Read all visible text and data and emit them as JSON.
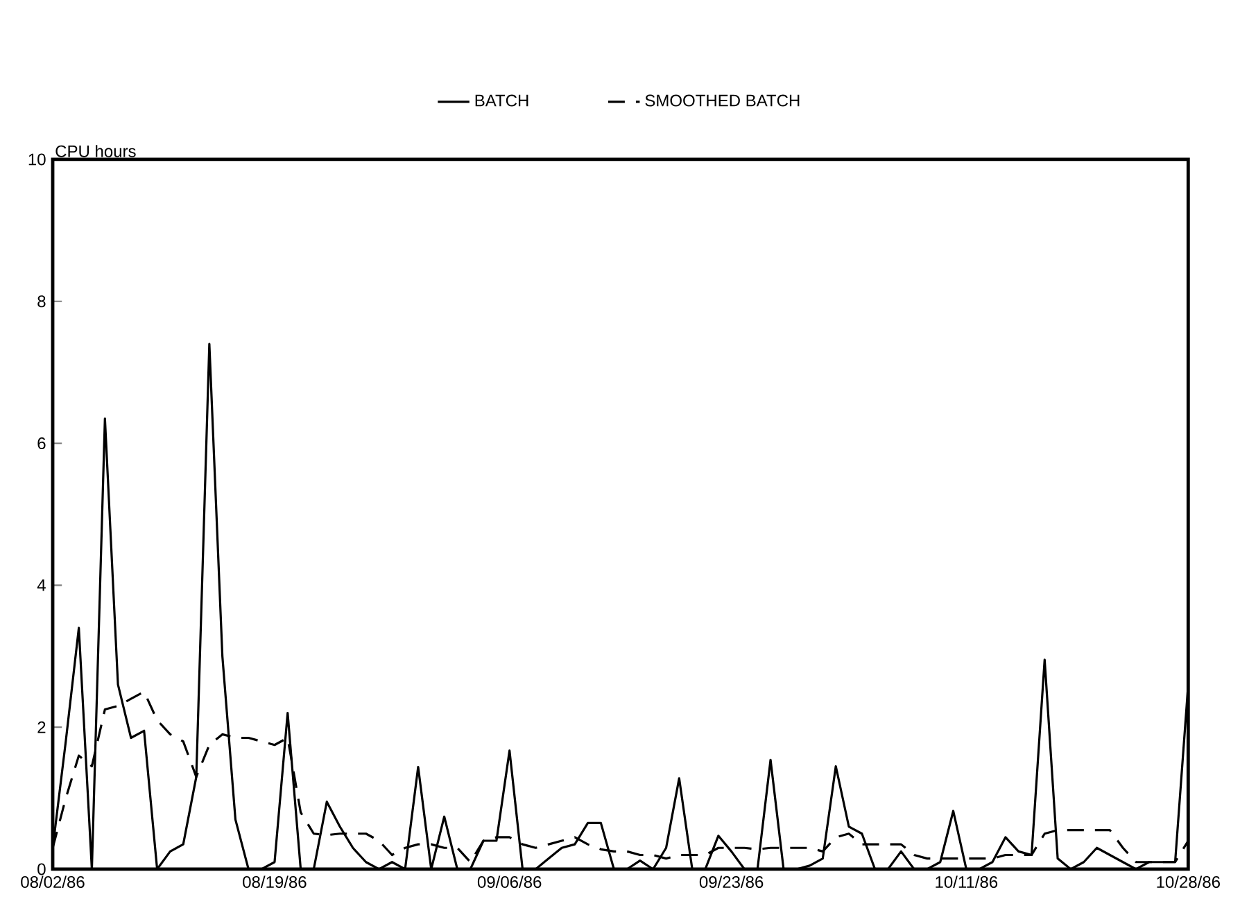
{
  "chart_data": {
    "type": "line",
    "ylabel": "CPU hours",
    "x": [
      "1986-08-02",
      "1986-08-03",
      "1986-08-04",
      "1986-08-05",
      "1986-08-06",
      "1986-08-07",
      "1986-08-08",
      "1986-08-09",
      "1986-08-10",
      "1986-08-11",
      "1986-08-12",
      "1986-08-13",
      "1986-08-14",
      "1986-08-15",
      "1986-08-16",
      "1986-08-17",
      "1986-08-18",
      "1986-08-19",
      "1986-08-20",
      "1986-08-21",
      "1986-08-22",
      "1986-08-23",
      "1986-08-24",
      "1986-08-25",
      "1986-08-26",
      "1986-08-27",
      "1986-08-28",
      "1986-08-29",
      "1986-08-30",
      "1986-08-31",
      "1986-09-01",
      "1986-09-02",
      "1986-09-03",
      "1986-09-04",
      "1986-09-05",
      "1986-09-06",
      "1986-09-07",
      "1986-09-08",
      "1986-09-09",
      "1986-09-10",
      "1986-09-11",
      "1986-09-12",
      "1986-09-13",
      "1986-09-14",
      "1986-09-15",
      "1986-09-16",
      "1986-09-17",
      "1986-09-18",
      "1986-09-19",
      "1986-09-20",
      "1986-09-21",
      "1986-09-22",
      "1986-09-23",
      "1986-09-24",
      "1986-09-25",
      "1986-09-26",
      "1986-09-27",
      "1986-09-28",
      "1986-09-29",
      "1986-09-30",
      "1986-10-01",
      "1986-10-02",
      "1986-10-03",
      "1986-10-04",
      "1986-10-05",
      "1986-10-06",
      "1986-10-07",
      "1986-10-08",
      "1986-10-09",
      "1986-10-10",
      "1986-10-11",
      "1986-10-12",
      "1986-10-13",
      "1986-10-14",
      "1986-10-15",
      "1986-10-16",
      "1986-10-17",
      "1986-10-18",
      "1986-10-19",
      "1986-10-20",
      "1986-10-21",
      "1986-10-22",
      "1986-10-23",
      "1986-10-24",
      "1986-10-25",
      "1986-10-26",
      "1986-10-27",
      "1986-10-28"
    ],
    "series": [
      {
        "name": "BATCH",
        "color": "#000000",
        "line_style": "solid",
        "values": [
          0.3,
          1.8,
          3.4,
          0,
          6.35,
          2.6,
          1.85,
          1.95,
          0,
          0.25,
          0.35,
          1.3,
          7.4,
          3.0,
          0.7,
          0,
          0,
          0.1,
          2.2,
          0,
          0,
          0.95,
          0.6,
          0.3,
          0.1,
          0,
          0.1,
          0,
          1.44,
          0,
          0.74,
          0,
          0,
          0.4,
          0.4,
          1.67,
          0,
          0,
          0.15,
          0.3,
          0.35,
          0.65,
          0.65,
          0,
          0,
          0.12,
          0,
          0.3,
          1.28,
          0,
          0,
          0.47,
          0.25,
          0,
          0,
          1.54,
          0,
          0,
          0.05,
          0.15,
          1.45,
          0.6,
          0.5,
          0,
          0,
          0.25,
          0,
          0,
          0.1,
          0.82,
          0,
          0,
          0.1,
          0.45,
          0.25,
          0.2,
          2.95,
          0.15,
          0,
          0.1,
          0.3,
          0.2,
          0.1,
          0,
          0.1,
          0.1,
          0.1,
          2.6
        ]
      },
      {
        "name": "SMOOTHED BATCH",
        "color": "#000000",
        "line_style": "dashed",
        "values": [
          0.3,
          1.0,
          1.6,
          1.45,
          2.25,
          2.3,
          2.4,
          2.5,
          2.1,
          1.9,
          1.8,
          1.3,
          1.75,
          1.9,
          1.85,
          1.85,
          1.8,
          1.75,
          1.85,
          0.8,
          0.5,
          0.48,
          0.5,
          0.5,
          0.5,
          0.4,
          0.2,
          0.3,
          0.35,
          0.35,
          0.3,
          0.3,
          0.1,
          0.4,
          0.45,
          0.45,
          0.35,
          0.3,
          0.35,
          0.4,
          0.45,
          0.35,
          0.28,
          0.25,
          0.25,
          0.2,
          0.2,
          0.15,
          0.2,
          0.2,
          0.2,
          0.3,
          0.3,
          0.3,
          0.28,
          0.3,
          0.3,
          0.3,
          0.3,
          0.25,
          0.45,
          0.5,
          0.35,
          0.35,
          0.35,
          0.35,
          0.2,
          0.15,
          0.15,
          0.15,
          0.15,
          0.15,
          0.15,
          0.2,
          0.2,
          0.2,
          0.5,
          0.55,
          0.55,
          0.55,
          0.55,
          0.55,
          0.3,
          0.1,
          0.1,
          0.1,
          0.1,
          0.4
        ]
      }
    ],
    "xlim": [
      "1986-08-02",
      "1986-10-28"
    ],
    "xticks": [
      {
        "value": "1986-08-02",
        "label": "08/02/86"
      },
      {
        "value": "1986-08-19",
        "label": "08/19/86"
      },
      {
        "value": "1986-09-06",
        "label": "09/06/86"
      },
      {
        "value": "1986-09-23",
        "label": "09/23/86"
      },
      {
        "value": "1986-10-11",
        "label": "10/11/86"
      },
      {
        "value": "1986-10-28",
        "label": "10/28/86"
      }
    ],
    "ylim": [
      0,
      10
    ],
    "yticks": [
      0,
      2,
      4,
      6,
      8,
      10
    ],
    "grid": false,
    "legend": "top",
    "marker": "none"
  }
}
